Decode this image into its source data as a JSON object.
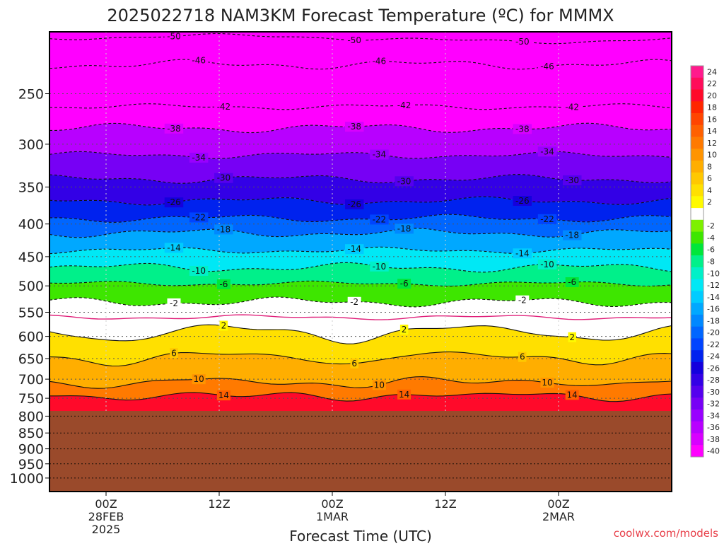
{
  "chart_data": {
    "type": "heatmap",
    "title": "2025022718 NAM3KM Forecast Temperature (ºC) for MMMX",
    "xlabel": "Forecast Time (UTC)",
    "ylabel": "",
    "credit": "coolwx.com/models",
    "y_axis": {
      "scale": "log",
      "reversed": true,
      "range": [
        200,
        1050
      ],
      "ticks": [
        250,
        300,
        350,
        400,
        450,
        500,
        550,
        600,
        650,
        700,
        750,
        800,
        850,
        900,
        950,
        1000
      ],
      "tick_labels": [
        "250",
        "300",
        "350",
        "400",
        "450",
        "500",
        "550",
        "600",
        "650",
        "700",
        "750",
        "800",
        "850",
        "900",
        "950",
        "1000"
      ]
    },
    "x_axis": {
      "ticks": [
        {
          "time": "2025-02-28 00Z",
          "label": "00Z",
          "sub": "28FEB",
          "sub2": "2025"
        },
        {
          "time": "2025-02-28 12Z",
          "label": "12Z",
          "sub": "",
          "sub2": ""
        },
        {
          "time": "2025-03-01 00Z",
          "label": "00Z",
          "sub": "1MAR",
          "sub2": ""
        },
        {
          "time": "2025-03-01 12Z",
          "label": "12Z",
          "sub": "",
          "sub2": ""
        },
        {
          "time": "2025-03-02 00Z",
          "label": "00Z",
          "sub": "2MAR",
          "sub2": ""
        }
      ],
      "range": [
        "2025-02-27 18Z",
        "2025-03-02 12Z"
      ]
    },
    "surface_pressure": 785,
    "ground_color": "#9a4a2b",
    "colorbar": [
      {
        "label": "24",
        "color": "#ff1a8c"
      },
      {
        "label": "22",
        "color": "#ff0d5a"
      },
      {
        "label": "20",
        "color": "#ff0a2a"
      },
      {
        "label": "18",
        "color": "#ff2600"
      },
      {
        "label": "16",
        "color": "#ff4500"
      },
      {
        "label": "14",
        "color": "#ff6000"
      },
      {
        "label": "12",
        "color": "#ff7a00"
      },
      {
        "label": "10",
        "color": "#ff9400"
      },
      {
        "label": "8",
        "color": "#ffae00"
      },
      {
        "label": "6",
        "color": "#ffc800"
      },
      {
        "label": "4",
        "color": "#ffe000"
      },
      {
        "label": "2",
        "color": "#fffa00"
      },
      {
        "label": "",
        "color": "#ffffff"
      },
      {
        "label": "-2",
        "color": "#7df000"
      },
      {
        "label": "-4",
        "color": "#3ee600"
      },
      {
        "label": "-6",
        "color": "#00e63a"
      },
      {
        "label": "-8",
        "color": "#00f08a"
      },
      {
        "label": "-10",
        "color": "#00f0c8"
      },
      {
        "label": "-12",
        "color": "#00e8f5"
      },
      {
        "label": "-14",
        "color": "#00ccff"
      },
      {
        "label": "-16",
        "color": "#00a8ff"
      },
      {
        "label": "-18",
        "color": "#0088ff"
      },
      {
        "label": "-20",
        "color": "#0066ff"
      },
      {
        "label": "-22",
        "color": "#0044ff"
      },
      {
        "label": "-24",
        "color": "#0022ee"
      },
      {
        "label": "-26",
        "color": "#1400dd"
      },
      {
        "label": "-28",
        "color": "#3300e6"
      },
      {
        "label": "-30",
        "color": "#5500ee"
      },
      {
        "label": "-32",
        "color": "#7700f5"
      },
      {
        "label": "-34",
        "color": "#9900ff"
      },
      {
        "label": "-36",
        "color": "#b800ff"
      },
      {
        "label": "-38",
        "color": "#d800ff"
      },
      {
        "label": "-40",
        "color": "#ff00ff"
      }
    ],
    "isotherms": [
      {
        "value": -50,
        "label": "-50",
        "pressure": 205
      },
      {
        "value": -46,
        "label": "-46",
        "pressure": 225
      },
      {
        "value": -42,
        "label": "-42",
        "pressure": 262
      },
      {
        "value": -38,
        "label": "-38",
        "pressure": 283
      },
      {
        "value": -34,
        "label": "-34",
        "pressure": 312
      },
      {
        "value": -30,
        "label": "-30",
        "pressure": 340
      },
      {
        "value": -26,
        "label": "-26",
        "pressure": 368
      },
      {
        "value": -22,
        "label": "-22",
        "pressure": 392
      },
      {
        "value": -18,
        "label": "-18",
        "pressure": 413
      },
      {
        "value": -14,
        "label": "-14",
        "pressure": 440
      },
      {
        "value": -10,
        "label": "-10",
        "pressure": 468
      },
      {
        "value": -6,
        "label": "-6",
        "pressure": 496
      },
      {
        "value": -2,
        "label": "-2",
        "pressure": 530
      },
      {
        "value": 0,
        "label": "",
        "pressure": 560
      },
      {
        "value": 2,
        "label": "2",
        "pressure": 585
      },
      {
        "value": 6,
        "label": "6",
        "pressure": 640
      },
      {
        "value": 10,
        "label": "10",
        "pressure": 700
      },
      {
        "value": 14,
        "label": "14",
        "pressure": 735
      }
    ]
  }
}
